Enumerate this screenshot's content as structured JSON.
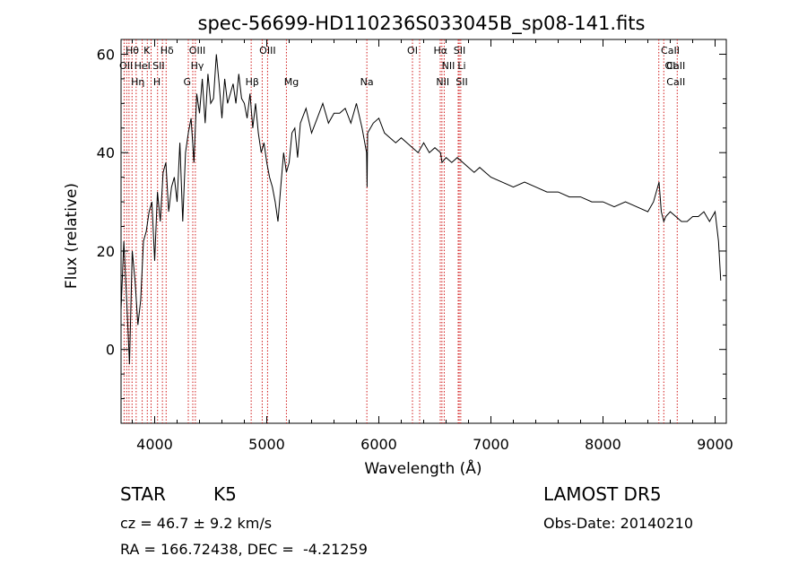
{
  "chart_data": {
    "type": "line",
    "title": "spec-56699-HD110236S033045B_sp08-141.fits",
    "xlabel": "Wavelength (Å)",
    "ylabel": "Flux (relative)",
    "xlim": [
      3700,
      9100
    ],
    "ylim": [
      -15,
      63
    ],
    "xticks": [
      4000,
      5000,
      6000,
      7000,
      8000,
      9000
    ],
    "yticks": [
      0,
      20,
      40,
      60
    ],
    "grid": false,
    "line_color": "#000000",
    "marker_color": "#cc0000",
    "series": [
      {
        "x": [
          3700,
          3725,
          3750,
          3775,
          3800,
          3825,
          3850,
          3875,
          3900,
          3925,
          3950,
          3975,
          4000,
          4025,
          4050,
          4075,
          4100,
          4125,
          4150,
          4175,
          4200,
          4225,
          4250,
          4275,
          4300,
          4325,
          4350,
          4375,
          4400,
          4425,
          4450,
          4475,
          4500,
          4525,
          4550,
          4575,
          4600,
          4625,
          4650,
          4675,
          4700,
          4725,
          4750,
          4775,
          4800,
          4825,
          4850,
          4875,
          4900,
          4925,
          4950,
          4975,
          5000,
          5025,
          5050,
          5075,
          5100,
          5125,
          5150,
          5175,
          5200,
          5225,
          5250,
          5275,
          5300,
          5350,
          5400,
          5450,
          5500,
          5550,
          5600,
          5650,
          5700,
          5750,
          5800,
          5850,
          5890,
          5895,
          5900,
          5950,
          6000,
          6050,
          6100,
          6150,
          6200,
          6250,
          6300,
          6350,
          6400,
          6450,
          6500,
          6550,
          6563,
          6600,
          6650,
          6700,
          6750,
          6800,
          6850,
          6900,
          6950,
          7000,
          7100,
          7200,
          7300,
          7400,
          7500,
          7600,
          7700,
          7800,
          7900,
          8000,
          8100,
          8200,
          8300,
          8400,
          8450,
          8500,
          8520,
          8542,
          8560,
          8600,
          8650,
          8700,
          8750,
          8800,
          8850,
          8900,
          8950,
          9000,
          9030,
          9050
        ],
        "values": [
          8,
          22,
          10,
          -3,
          20,
          14,
          5,
          10,
          22,
          24,
          28,
          30,
          18,
          32,
          26,
          36,
          38,
          28,
          33,
          35,
          30,
          42,
          26,
          40,
          44,
          47,
          38,
          52,
          48,
          55,
          46,
          56,
          50,
          51,
          60,
          54,
          47,
          55,
          50,
          52,
          54,
          50,
          56,
          51,
          50,
          47,
          52,
          45,
          50,
          44,
          40,
          42,
          38,
          35,
          33,
          30,
          26,
          33,
          40,
          36,
          38,
          44,
          45,
          39,
          46,
          49,
          44,
          47,
          50,
          46,
          48,
          48,
          49,
          46,
          50,
          45,
          40,
          33,
          44,
          46,
          47,
          44,
          43,
          42,
          43,
          42,
          41,
          40,
          42,
          40,
          41,
          40,
          38,
          39,
          38,
          39,
          38,
          37,
          36,
          37,
          36,
          35,
          34,
          33,
          34,
          33,
          32,
          32,
          31,
          31,
          30,
          30,
          29,
          30,
          29,
          28,
          30,
          34,
          28,
          26,
          27,
          28,
          27,
          26,
          26,
          27,
          27,
          28,
          26,
          28,
          22,
          14
        ]
      }
    ],
    "annotations": [
      "Hθ",
      "K",
      "Hδ",
      "OII",
      "HeI",
      "SII",
      "OIII",
      "Hγ",
      "OIII",
      "OI",
      "Hα",
      "SII",
      "CaII",
      "OI",
      "Hη",
      "H",
      "G",
      "Hβ",
      "Mg",
      "Na",
      "NII",
      "Li",
      "CaII",
      "NII",
      "SII",
      "CaII"
    ]
  },
  "info": {
    "class": "STAR",
    "subclass": "K5",
    "survey": "LAMOST DR5",
    "cz": "cz = 46.7 ± 9.2 km/s",
    "obsdate": "Obs-Date: 20140210",
    "radec": "RA = 166.72438, DEC =  -4.21259"
  }
}
